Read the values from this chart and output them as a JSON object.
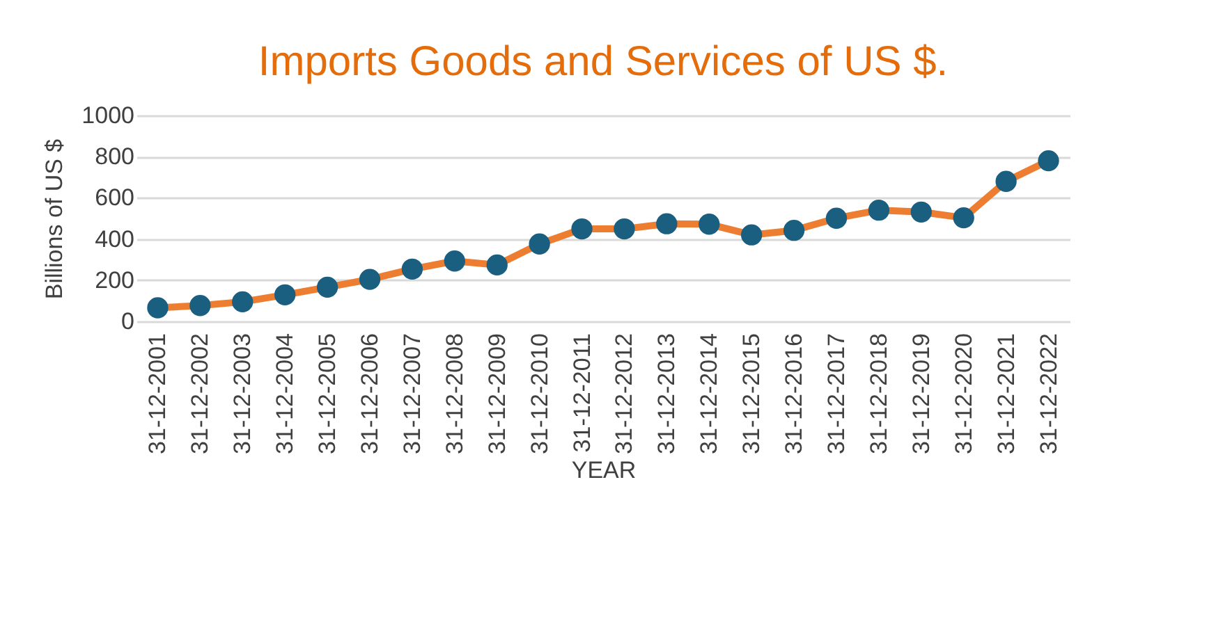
{
  "chart_data": {
    "type": "line",
    "title": "Imports Goods and Services of US $.",
    "xlabel": "YEAR",
    "ylabel": "Billions of US $",
    "categories": [
      "31-12-2001",
      "31-12-2002",
      "31-12-2003",
      "31-12-2004",
      "31-12-2005",
      "31-12-2006",
      "31-12-2007",
      "31-12-2008",
      "31-12-2009",
      "31-12-2010",
      "31-12-2011",
      "31-12-2012",
      "31-12-2013",
      "31-12-2014",
      "31-12-2015",
      "31-12-2016",
      "31-12-2017",
      "31-12-2018",
      "31-12-2019",
      "31-12-2020",
      "31-12-2021",
      "31-12-2022"
    ],
    "series": [
      {
        "color": "#ed7d31",
        "colors": [
          "#1a5e80",
          "#1a5e80",
          "#1a5e80",
          "#1a5e80",
          "#1a5e80",
          "#1a5e80",
          "#1a5e80",
          "#1a5e80",
          "#1a5e80",
          "#1a5e80",
          "#1a5e80",
          "#1a5e80",
          "#1a5e80",
          "#1a5e80",
          "#1a5e80",
          "#1a5e80",
          "#1a5e80",
          "#1a5e80",
          "#1a5e80",
          "#1a5e80",
          "#1a5e80",
          "#1a5e80"
        ],
        "values": [
          66,
          77,
          95,
          129,
          166,
          204,
          254,
          293,
          274,
          376,
          449,
          449,
          474,
          472,
          420,
          442,
          501,
          540,
          531,
          503,
          680,
          780
        ]
      }
    ],
    "ylim": [
      0,
      1000
    ],
    "yticks": [
      0,
      200,
      400,
      600,
      800,
      1000
    ],
    "grid": "y",
    "marker": "circle",
    "line_style": "solid"
  }
}
